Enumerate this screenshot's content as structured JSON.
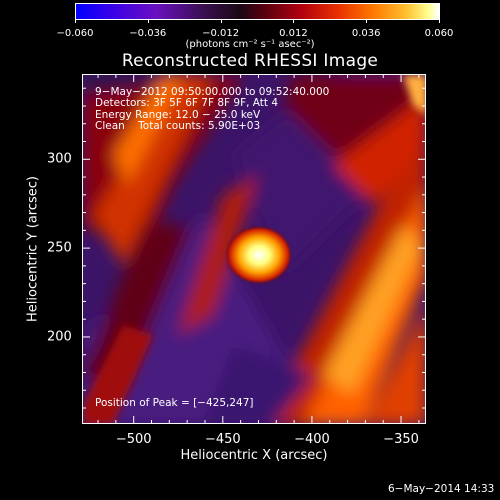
{
  "colorbar": {
    "tick_labels": [
      "−0.060",
      "−0.036",
      "−0.012",
      "0.012",
      "0.036",
      "0.060"
    ],
    "tick_values": [
      -0.06,
      -0.036,
      -0.012,
      0.012,
      0.036,
      0.06
    ],
    "range": [
      -0.06,
      0.06
    ],
    "units": "(photons cm⁻² s⁻¹ asec⁻²)",
    "colors": [
      "#0000ff",
      "#6a10c0",
      "#1a0815",
      "#b00010",
      "#ff7a00",
      "#ffffff"
    ]
  },
  "title": "Reconstructed RHESSI Image",
  "info": {
    "time": "9−May−2012 09:50:00.000 to 09:52:40.000",
    "detectors": "Detectors: 3F 5F 6F 7F 8F 9F, Att 4",
    "energy": "Energy Range: 12.0 − 25.0 keV",
    "clean": "Clean    Total counts: 5.90E+03",
    "peak": "Position of Peak = [−425,247]"
  },
  "x_axis": {
    "title": "Heliocentric X (arcsec)",
    "tick_labels": [
      "−500",
      "−450",
      "−400",
      "−350"
    ],
    "tick_values": [
      -500,
      -450,
      -400,
      -350
    ],
    "range": [
      -529,
      -336
    ]
  },
  "y_axis": {
    "title": "Heliocentric Y (arcsec)",
    "tick_labels": [
      "300",
      "250",
      "200"
    ],
    "tick_values": [
      300,
      250,
      200
    ],
    "range": [
      151,
      348
    ]
  },
  "timestamp": "6−May−2014 14:33"
}
